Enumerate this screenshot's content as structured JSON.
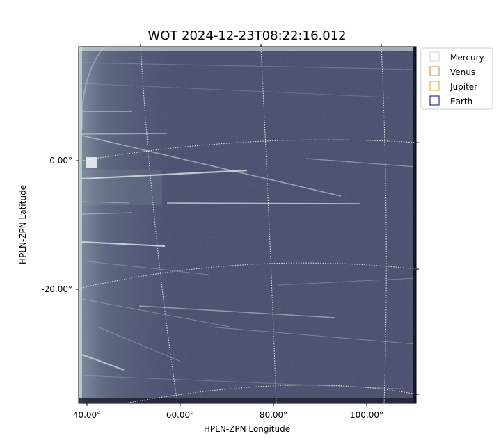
{
  "chart_data": {
    "type": "heatmap",
    "title": "WOT 2024-12-23T08:22:16.012",
    "xlabel": "HPLN-ZPN Longitude",
    "ylabel": "HPLN-ZPN Latitude",
    "x_ticks": [
      {
        "value": 40,
        "label": "40.00°"
      },
      {
        "value": 60,
        "label": "60.00°"
      },
      {
        "value": 80,
        "label": "80.00°"
      },
      {
        "value": 100,
        "label": "100.00°"
      }
    ],
    "y_ticks": [
      {
        "value": 0,
        "label": "0.00°"
      },
      {
        "value": -20,
        "label": "-20.00°"
      }
    ],
    "grid": true,
    "legend_position": "outside-top-right",
    "legend": [
      {
        "name": "Mercury",
        "color": "#d3d3d3"
      },
      {
        "name": "Venus",
        "color": "#e07b39"
      },
      {
        "name": "Jupiter",
        "color": "#e6a817"
      },
      {
        "name": "Earth",
        "color": "#00008b"
      }
    ],
    "colormap": "bone",
    "background_color": "#4a4e6b"
  }
}
